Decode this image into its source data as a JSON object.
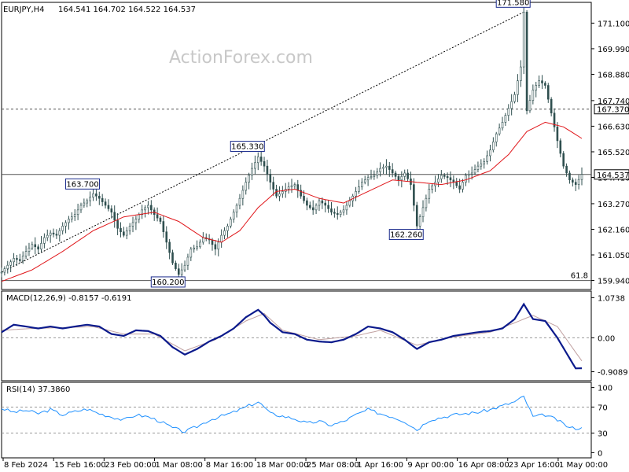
{
  "header": {
    "symbol": "EURJPY,H4",
    "ohlc": "164.541 164.702 164.522 164.537"
  },
  "watermark": "ActionForex.com",
  "colors": {
    "candles": "#2f4f4f",
    "moving_average": "#e0161a",
    "macd_line": "#0b1a8c",
    "macd_signal": "#c0a0a0",
    "rsi": "#1e90ff",
    "label_border": "#1a2b8c",
    "trendline": "#000000",
    "grid_level": "#555555"
  },
  "chart_data": [
    {
      "type": "candlestick",
      "panel": "price",
      "series": [
        {
          "name": "EURJPY,H4",
          "close_path": [
            [
              0,
              160.3
            ],
            [
              2,
              160.6
            ],
            [
              4,
              160.9
            ],
            [
              6,
              160.8
            ],
            [
              8,
              161.2
            ],
            [
              10,
              161.5
            ],
            [
              12,
              161.3
            ],
            [
              14,
              161.8
            ],
            [
              16,
              162.0
            ],
            [
              18,
              161.9
            ],
            [
              20,
              162.3
            ],
            [
              22,
              162.6
            ],
            [
              24,
              162.8
            ],
            [
              26,
              163.2
            ],
            [
              28,
              163.4
            ],
            [
              30,
              163.7
            ],
            [
              32,
              163.5
            ],
            [
              34,
              163.2
            ],
            [
              36,
              162.9
            ],
            [
              38,
              162.2
            ],
            [
              40,
              161.9
            ],
            [
              42,
              162.3
            ],
            [
              44,
              162.6
            ],
            [
              46,
              163.0
            ],
            [
              48,
              163.2
            ],
            [
              50,
              162.8
            ],
            [
              52,
              162.5
            ],
            [
              54,
              161.6
            ],
            [
              56,
              160.7
            ],
            [
              58,
              160.2
            ],
            [
              60,
              160.6
            ],
            [
              62,
              161.3
            ],
            [
              64,
              161.4
            ],
            [
              66,
              161.8
            ],
            [
              68,
              161.7
            ],
            [
              70,
              161.3
            ],
            [
              72,
              161.9
            ],
            [
              74,
              162.3
            ],
            [
              76,
              162.9
            ],
            [
              78,
              163.5
            ],
            [
              80,
              164.2
            ],
            [
              82,
              164.8
            ],
            [
              84,
              165.3
            ],
            [
              86,
              164.9
            ],
            [
              88,
              164.2
            ],
            [
              90,
              163.6
            ],
            [
              92,
              163.8
            ],
            [
              94,
              164.0
            ],
            [
              96,
              164.1
            ],
            [
              98,
              163.6
            ],
            [
              100,
              163.2
            ],
            [
              102,
              163.0
            ],
            [
              104,
              163.4
            ],
            [
              106,
              163.2
            ],
            [
              108,
              162.9
            ],
            [
              110,
              162.8
            ],
            [
              112,
              163.0
            ],
            [
              114,
              163.4
            ],
            [
              116,
              163.8
            ],
            [
              118,
              164.2
            ],
            [
              120,
              164.4
            ],
            [
              122,
              164.5
            ],
            [
              124,
              164.8
            ],
            [
              126,
              164.9
            ],
            [
              128,
              164.6
            ],
            [
              130,
              164.3
            ],
            [
              132,
              164.6
            ],
            [
              134,
              164.1
            ],
            [
              136,
              162.3
            ],
            [
              138,
              163.1
            ],
            [
              140,
              163.9
            ],
            [
              142,
              164.2
            ],
            [
              144,
              164.5
            ],
            [
              146,
              164.4
            ],
            [
              148,
              164.2
            ],
            [
              150,
              163.9
            ],
            [
              152,
              164.5
            ],
            [
              154,
              164.6
            ],
            [
              156,
              164.9
            ],
            [
              158,
              165.1
            ],
            [
              160,
              165.6
            ],
            [
              162,
              166.3
            ],
            [
              164,
              166.8
            ],
            [
              166,
              167.4
            ],
            [
              168,
              168.0
            ],
            [
              170,
              169.2
            ],
            [
              171,
              171.58
            ],
            [
              172,
              167.3
            ],
            [
              174,
              168.2
            ],
            [
              176,
              168.6
            ],
            [
              178,
              168.4
            ],
            [
              180,
              167.2
            ],
            [
              182,
              166.0
            ],
            [
              184,
              164.9
            ],
            [
              186,
              164.3
            ],
            [
              188,
              164.1
            ],
            [
              190,
              164.537
            ]
          ]
        },
        {
          "name": "MA",
          "values": [
            [
              0,
              159.9
            ],
            [
              10,
              160.4
            ],
            [
              20,
              161.2
            ],
            [
              30,
              162.1
            ],
            [
              40,
              162.7
            ],
            [
              50,
              162.9
            ],
            [
              58,
              162.5
            ],
            [
              66,
              161.8
            ],
            [
              72,
              161.6
            ],
            [
              78,
              162.1
            ],
            [
              84,
              163.1
            ],
            [
              90,
              163.8
            ],
            [
              96,
              163.9
            ],
            [
              104,
              163.5
            ],
            [
              112,
              163.3
            ],
            [
              120,
              163.8
            ],
            [
              128,
              164.3
            ],
            [
              136,
              164.2
            ],
            [
              144,
              164.1
            ],
            [
              152,
              164.3
            ],
            [
              160,
              164.7
            ],
            [
              166,
              165.4
            ],
            [
              172,
              166.4
            ],
            [
              178,
              166.8
            ],
            [
              184,
              166.6
            ],
            [
              190,
              166.1
            ]
          ]
        }
      ],
      "ylim": [
        159.94,
        171.58
      ],
      "y_ticks": [
        "171.100",
        "169.990",
        "168.880",
        "167.740",
        "166.630",
        "165.520",
        "164.410",
        "163.270",
        "162.160",
        "161.050",
        "159.940"
      ],
      "x_ticks": [
        "8 Feb 2024",
        "15 Feb 16:00",
        "23 Feb 00:00",
        "1 Mar 08:00",
        "8 Mar 16:00",
        "18 Mar 00:00",
        "25 Mar 08:00",
        "1 Apr 16:00",
        "9 Apr 00:00",
        "16 Apr 08:00",
        "23 Apr 16:00",
        "1 May 00:00"
      ],
      "annotations": [
        "163.700",
        "165.330",
        "162.260",
        "160.200",
        "171.580"
      ],
      "horizontal_levels": [
        {
          "value": 167.37,
          "label": "167.370",
          "style": "dashed"
        },
        {
          "value": 164.537,
          "label": "164.537",
          "style": "solid"
        },
        {
          "value": 159.94,
          "label": "61.8",
          "style": "solid"
        }
      ],
      "trendline": {
        "from": [
          0,
          160.3
        ],
        "to": [
          171,
          171.58
        ],
        "style": "dotted"
      }
    },
    {
      "type": "line",
      "panel": "macd",
      "title": "MACD(12,26,9) -0.8157 -0.6191",
      "y_ticks": [
        "1.0738",
        "0.00",
        "-0.9089"
      ],
      "ylim": [
        -0.9089,
        1.0738
      ],
      "series": [
        {
          "name": "MACD",
          "values": [
            [
              0,
              0.15
            ],
            [
              4,
              0.35
            ],
            [
              8,
              0.3
            ],
            [
              12,
              0.25
            ],
            [
              16,
              0.3
            ],
            [
              20,
              0.25
            ],
            [
              24,
              0.3
            ],
            [
              28,
              0.35
            ],
            [
              32,
              0.3
            ],
            [
              36,
              0.1
            ],
            [
              40,
              0.05
            ],
            [
              44,
              0.2
            ],
            [
              48,
              0.18
            ],
            [
              52,
              0.05
            ],
            [
              56,
              -0.25
            ],
            [
              60,
              -0.45
            ],
            [
              64,
              -0.3
            ],
            [
              68,
              -0.1
            ],
            [
              72,
              0.05
            ],
            [
              76,
              0.25
            ],
            [
              80,
              0.55
            ],
            [
              84,
              0.75
            ],
            [
              86,
              0.6
            ],
            [
              88,
              0.4
            ],
            [
              92,
              0.15
            ],
            [
              96,
              0.1
            ],
            [
              100,
              -0.05
            ],
            [
              104,
              -0.1
            ],
            [
              108,
              -0.12
            ],
            [
              112,
              -0.05
            ],
            [
              116,
              0.1
            ],
            [
              120,
              0.3
            ],
            [
              124,
              0.25
            ],
            [
              128,
              0.15
            ],
            [
              132,
              -0.05
            ],
            [
              136,
              -0.3
            ],
            [
              140,
              -0.12
            ],
            [
              144,
              -0.05
            ],
            [
              148,
              0.05
            ],
            [
              152,
              0.1
            ],
            [
              156,
              0.15
            ],
            [
              160,
              0.18
            ],
            [
              164,
              0.25
            ],
            [
              168,
              0.5
            ],
            [
              171,
              0.9
            ],
            [
              174,
              0.5
            ],
            [
              178,
              0.45
            ],
            [
              182,
              0.0
            ],
            [
              186,
              -0.55
            ],
            [
              188,
              -0.82
            ],
            [
              190,
              -0.8157
            ]
          ]
        },
        {
          "name": "Signal",
          "values": [
            [
              0,
              0.2
            ],
            [
              10,
              0.25
            ],
            [
              20,
              0.27
            ],
            [
              30,
              0.3
            ],
            [
              40,
              0.1
            ],
            [
              50,
              0.1
            ],
            [
              60,
              -0.35
            ],
            [
              70,
              -0.05
            ],
            [
              80,
              0.45
            ],
            [
              86,
              0.65
            ],
            [
              92,
              0.2
            ],
            [
              104,
              -0.05
            ],
            [
              116,
              0.05
            ],
            [
              124,
              0.2
            ],
            [
              136,
              -0.2
            ],
            [
              146,
              0.0
            ],
            [
              160,
              0.15
            ],
            [
              168,
              0.4
            ],
            [
              174,
              0.6
            ],
            [
              182,
              0.3
            ],
            [
              190,
              -0.6191
            ]
          ]
        }
      ]
    },
    {
      "type": "line",
      "panel": "rsi",
      "title": "RSI(14) 37.3860",
      "y_ticks": [
        "100",
        "70",
        "30",
        "0"
      ],
      "ylim": [
        0,
        100
      ],
      "series": [
        {
          "name": "RSI(14)",
          "values": [
            [
              0,
              68
            ],
            [
              4,
              62
            ],
            [
              8,
              65
            ],
            [
              12,
              60
            ],
            [
              16,
              66
            ],
            [
              20,
              58
            ],
            [
              24,
              63
            ],
            [
              28,
              67
            ],
            [
              32,
              60
            ],
            [
              36,
              55
            ],
            [
              40,
              50
            ],
            [
              44,
              58
            ],
            [
              48,
              55
            ],
            [
              52,
              48
            ],
            [
              56,
              38
            ],
            [
              60,
              32
            ],
            [
              64,
              40
            ],
            [
              68,
              50
            ],
            [
              72,
              56
            ],
            [
              76,
              62
            ],
            [
              80,
              70
            ],
            [
              84,
              78
            ],
            [
              86,
              70
            ],
            [
              88,
              60
            ],
            [
              92,
              56
            ],
            [
              96,
              52
            ],
            [
              100,
              45
            ],
            [
              104,
              48
            ],
            [
              108,
              42
            ],
            [
              112,
              48
            ],
            [
              116,
              58
            ],
            [
              120,
              66
            ],
            [
              124,
              60
            ],
            [
              128,
              55
            ],
            [
              132,
              48
            ],
            [
              136,
              35
            ],
            [
              140,
              50
            ],
            [
              144,
              54
            ],
            [
              148,
              58
            ],
            [
              152,
              60
            ],
            [
              156,
              62
            ],
            [
              160,
              66
            ],
            [
              164,
              72
            ],
            [
              168,
              78
            ],
            [
              171,
              86
            ],
            [
              174,
              55
            ],
            [
              178,
              58
            ],
            [
              182,
              50
            ],
            [
              186,
              38
            ],
            [
              190,
              37.386
            ]
          ]
        }
      ],
      "levels": [
        70,
        30
      ]
    }
  ]
}
